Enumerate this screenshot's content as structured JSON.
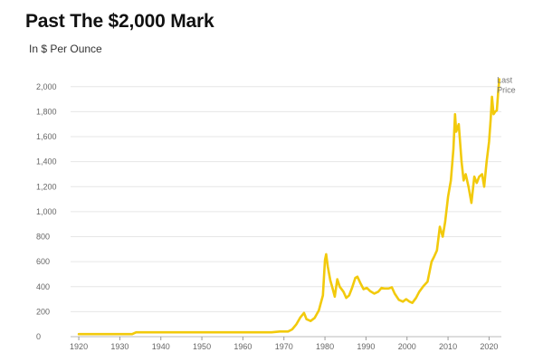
{
  "chart_data": {
    "type": "line",
    "title": "Past The $2,000 Mark",
    "subtitle": "In $ Per Ounce",
    "xlabel": "",
    "ylabel": "",
    "xlim": [
      1918,
      2023
    ],
    "ylim": [
      0,
      2100
    ],
    "grid": true,
    "legend": "none",
    "line_color": "#F2CA0C",
    "x_ticks": [
      1920,
      1930,
      1940,
      1950,
      1960,
      1970,
      1980,
      1990,
      2000,
      2010,
      2020
    ],
    "y_ticks": [
      0,
      200,
      400,
      600,
      800,
      1000,
      1200,
      1400,
      1600,
      1800,
      2000
    ],
    "y_tick_labels": [
      "0",
      "200",
      "400",
      "600",
      "800",
      "1,000",
      "1,200",
      "1,400",
      "1,600",
      "1,800",
      "2,000"
    ],
    "annotation": {
      "line1": "Last",
      "line2": "Price",
      "x": 2020.6,
      "y": 2060
    },
    "series": [
      {
        "values": [
          [
            1920,
            20
          ],
          [
            1925,
            20
          ],
          [
            1933,
            20
          ],
          [
            1934,
            35
          ],
          [
            1940,
            35
          ],
          [
            1950,
            35
          ],
          [
            1960,
            35
          ],
          [
            1967,
            35
          ],
          [
            1969,
            41
          ],
          [
            1971,
            41
          ],
          [
            1972,
            58
          ],
          [
            1973,
            97
          ],
          [
            1974,
            154
          ],
          [
            1974.9,
            190
          ],
          [
            1975.5,
            140
          ],
          [
            1976.5,
            125
          ],
          [
            1977.5,
            150
          ],
          [
            1978.5,
            210
          ],
          [
            1979.5,
            330
          ],
          [
            1980.0,
            615
          ],
          [
            1980.3,
            660
          ],
          [
            1980.7,
            560
          ],
          [
            1981.3,
            450
          ],
          [
            1981.8,
            395
          ],
          [
            1982.4,
            320
          ],
          [
            1983.0,
            460
          ],
          [
            1983.6,
            400
          ],
          [
            1984.5,
            360
          ],
          [
            1985.2,
            310
          ],
          [
            1985.9,
            330
          ],
          [
            1986.6,
            390
          ],
          [
            1987.4,
            470
          ],
          [
            1987.9,
            480
          ],
          [
            1988.6,
            430
          ],
          [
            1989.4,
            380
          ],
          [
            1990.2,
            390
          ],
          [
            1991.0,
            365
          ],
          [
            1992.0,
            345
          ],
          [
            1993.0,
            360
          ],
          [
            1993.8,
            390
          ],
          [
            1994.5,
            385
          ],
          [
            1995.5,
            385
          ],
          [
            1996.3,
            395
          ],
          [
            1997.0,
            345
          ],
          [
            1998.0,
            295
          ],
          [
            1999.0,
            280
          ],
          [
            1999.8,
            300
          ],
          [
            2000.6,
            280
          ],
          [
            2001.3,
            270
          ],
          [
            2002.2,
            310
          ],
          [
            2003.0,
            360
          ],
          [
            2004.0,
            405
          ],
          [
            2005.0,
            440
          ],
          [
            2006.0,
            600
          ],
          [
            2006.6,
            640
          ],
          [
            2007.3,
            690
          ],
          [
            2008.0,
            880
          ],
          [
            2008.7,
            800
          ],
          [
            2009.3,
            920
          ],
          [
            2010.0,
            1120
          ],
          [
            2010.7,
            1250
          ],
          [
            2011.3,
            1500
          ],
          [
            2011.7,
            1780
          ],
          [
            2012.0,
            1640
          ],
          [
            2012.6,
            1700
          ],
          [
            2013.3,
            1400
          ],
          [
            2013.8,
            1250
          ],
          [
            2014.3,
            1300
          ],
          [
            2015.0,
            1200
          ],
          [
            2015.7,
            1070
          ],
          [
            2016.4,
            1280
          ],
          [
            2017.0,
            1230
          ],
          [
            2017.6,
            1280
          ],
          [
            2018.3,
            1300
          ],
          [
            2018.8,
            1200
          ],
          [
            2019.4,
            1400
          ],
          [
            2020.0,
            1560
          ],
          [
            2020.4,
            1740
          ],
          [
            2020.7,
            1920
          ],
          [
            2021.1,
            1780
          ],
          [
            2021.5,
            1800
          ],
          [
            2021.9,
            1810
          ],
          [
            2022.2,
            1950
          ],
          [
            2022.5,
            2060
          ]
        ]
      }
    ]
  }
}
